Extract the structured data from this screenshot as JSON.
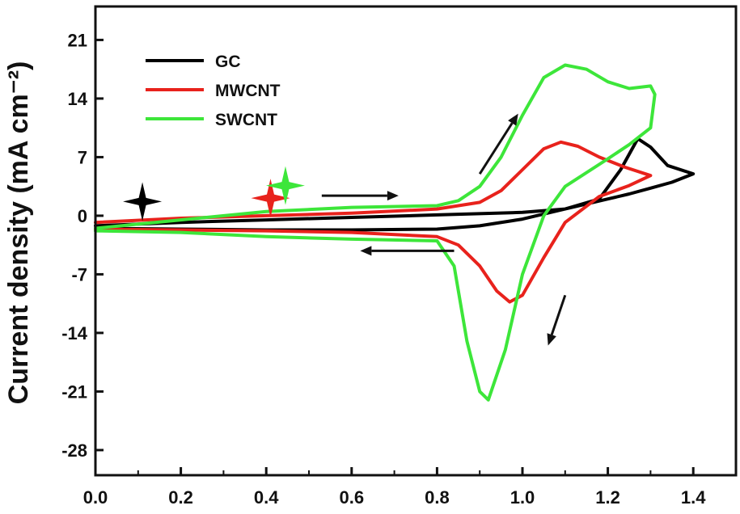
{
  "chart_data": {
    "type": "line",
    "title": "",
    "xlabel": "",
    "ylabel": "Current density (mA cm⁻²)",
    "xlim": [
      0.0,
      1.5
    ],
    "ylim": [
      -31,
      25
    ],
    "x_ticks": [
      "0.0",
      "0.2",
      "0.4",
      "0.6",
      "0.8",
      "1.0",
      "1.2",
      "1.4"
    ],
    "x_tick_values": [
      0.0,
      0.2,
      0.4,
      0.6,
      0.8,
      1.0,
      1.2,
      1.4
    ],
    "y_ticks": [
      "21",
      "14",
      "7",
      "0",
      "-7",
      "-14",
      "-21",
      "-28"
    ],
    "y_tick_values": [
      21,
      14,
      7,
      0,
      -7,
      -14,
      -21,
      -28
    ],
    "grid": false,
    "legend_position": "top-left",
    "colors": {
      "GC": "#000000",
      "MWCNT": "#e8221c",
      "SWCNT": "#3de63a"
    },
    "series": [
      {
        "name": "GC",
        "x": [
          0.0,
          0.2,
          0.4,
          0.6,
          0.8,
          1.0,
          1.1,
          1.18,
          1.23,
          1.27,
          1.3,
          1.34,
          1.4,
          1.35,
          1.3,
          1.25,
          1.2,
          1.1,
          1.0,
          0.9,
          0.8,
          0.6,
          0.4,
          0.2,
          0.0
        ],
        "y": [
          -1.2,
          -0.8,
          -0.5,
          -0.2,
          0.1,
          0.4,
          0.8,
          2.0,
          5.5,
          9.2,
          8.2,
          6.0,
          5.0,
          4.0,
          3.3,
          2.6,
          2.0,
          0.8,
          -0.4,
          -1.2,
          -1.6,
          -1.7,
          -1.7,
          -1.6,
          -1.5
        ]
      },
      {
        "name": "MWCNT",
        "x": [
          0.0,
          0.2,
          0.4,
          0.6,
          0.8,
          0.9,
          0.95,
          1.0,
          1.05,
          1.09,
          1.13,
          1.18,
          1.24,
          1.3,
          1.25,
          1.18,
          1.1,
          1.05,
          1.0,
          0.97,
          0.94,
          0.9,
          0.85,
          0.8,
          0.6,
          0.4,
          0.2,
          0.0
        ],
        "y": [
          -0.8,
          -0.3,
          0.0,
          0.3,
          0.8,
          1.6,
          3.0,
          5.5,
          8.0,
          8.8,
          8.3,
          7.0,
          5.8,
          4.8,
          3.6,
          2.3,
          -0.8,
          -5.0,
          -9.5,
          -10.3,
          -9.0,
          -6.0,
          -3.5,
          -2.5,
          -2.0,
          -1.8,
          -1.7,
          -1.6
        ]
      },
      {
        "name": "SWCNT",
        "x": [
          0.0,
          0.2,
          0.4,
          0.6,
          0.8,
          0.85,
          0.9,
          0.95,
          1.0,
          1.05,
          1.1,
          1.15,
          1.2,
          1.25,
          1.3,
          1.31,
          1.3,
          1.25,
          1.2,
          1.1,
          1.05,
          1.0,
          0.96,
          0.92,
          0.9,
          0.87,
          0.84,
          0.8,
          0.6,
          0.4,
          0.2,
          0.0
        ],
        "y": [
          -1.5,
          -0.5,
          0.5,
          1.0,
          1.2,
          1.8,
          3.5,
          7.0,
          12.0,
          16.5,
          18.0,
          17.5,
          16.0,
          15.2,
          15.5,
          14.5,
          10.5,
          8.5,
          6.8,
          3.5,
          0.0,
          -7.0,
          -16.0,
          -22.0,
          -21.0,
          -15.0,
          -6.0,
          -3.0,
          -2.8,
          -2.5,
          -2.0,
          -1.8
        ]
      }
    ],
    "markers": [
      {
        "series": "GC",
        "x": 0.11,
        "y": 1.7
      },
      {
        "series": "MWCNT",
        "x": 0.41,
        "y": 2.1
      },
      {
        "series": "SWCNT",
        "x": 0.445,
        "y": 3.6
      }
    ],
    "arrows": [
      {
        "from": [
          0.53,
          2.4
        ],
        "to": [
          0.71,
          2.4
        ]
      },
      {
        "from": [
          0.84,
          -4.2
        ],
        "to": [
          0.62,
          -4.2
        ]
      },
      {
        "from": [
          0.9,
          5.0
        ],
        "to": [
          0.99,
          12.2
        ]
      },
      {
        "from": [
          1.1,
          -9.5
        ],
        "to": [
          1.06,
          -15.5
        ]
      }
    ]
  }
}
